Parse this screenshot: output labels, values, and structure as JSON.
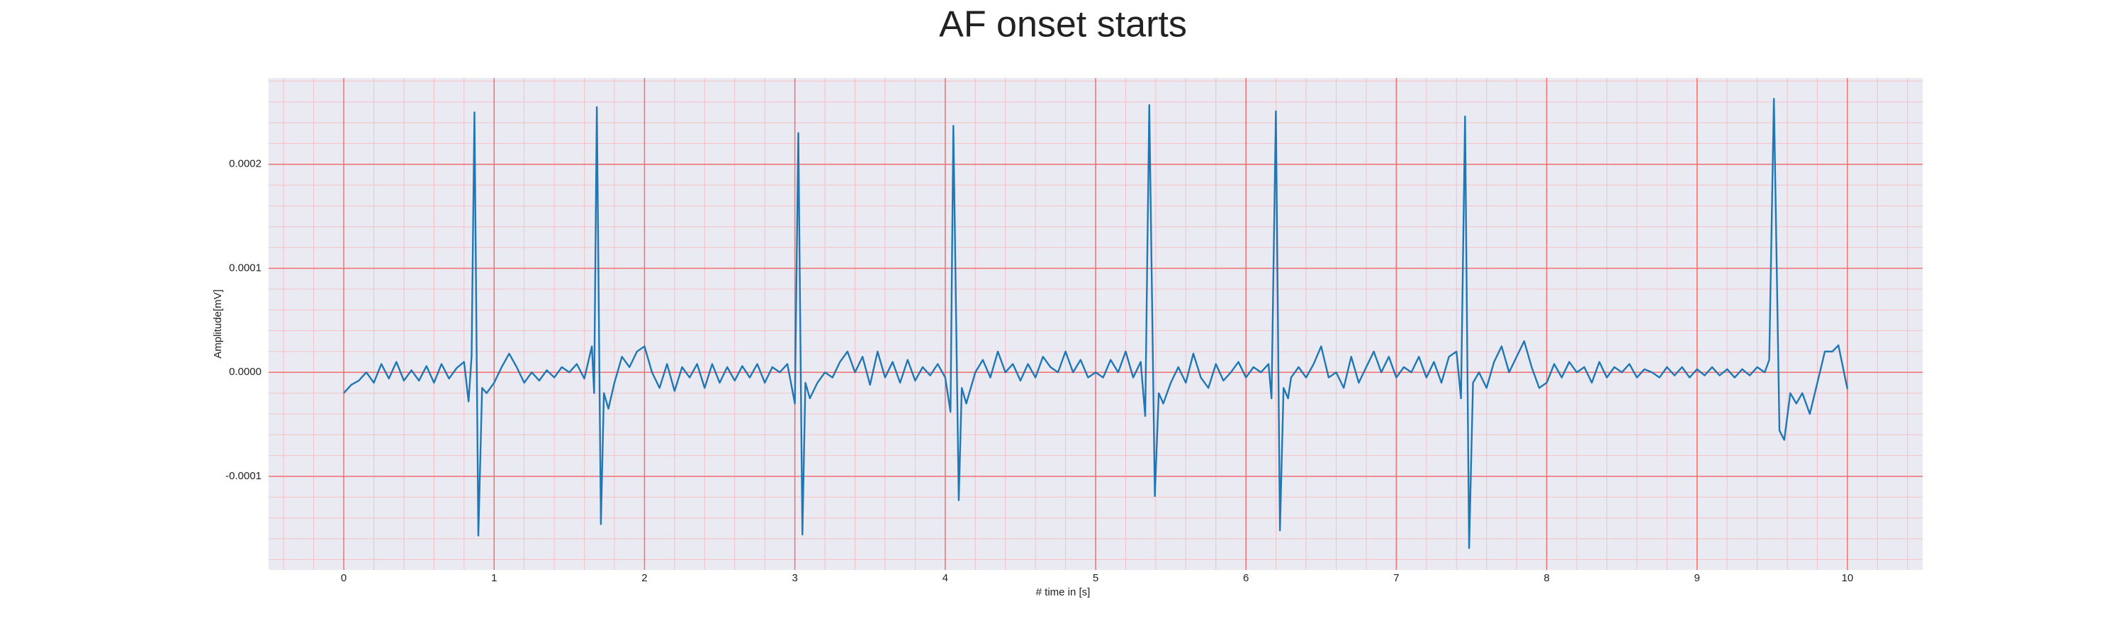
{
  "chart_data": {
    "type": "line",
    "title": "AF onset starts",
    "xlabel": "# time in [s]",
    "ylabel": "Amplitude[mV]",
    "color": "#1f77b4",
    "grid": true,
    "grid_color": "#f07070",
    "minor_grid": true,
    "minor_grid_color": "#f5c0c8",
    "background": "#eaeaf2",
    "xlim": [
      -0.5,
      10.5
    ],
    "ylim": [
      -0.00019,
      0.000283
    ],
    "xticks": [
      0,
      1,
      2,
      3,
      4,
      5,
      6,
      7,
      8,
      9,
      10
    ],
    "yticks": [
      -0.0001,
      {
        "value": 0,
        "label": "0.0000"
      },
      0.0001,
      0.0002
    ],
    "xminorticks": [
      -0.4,
      -0.2,
      0.2,
      0.4,
      0.6,
      0.8,
      1.2,
      1.4,
      1.6,
      1.8,
      2.2,
      2.4,
      2.6,
      2.8,
      3.2,
      3.4,
      3.6,
      3.8,
      4.2,
      4.4,
      4.6,
      4.8,
      5.2,
      5.4,
      5.6,
      5.8,
      6.2,
      6.4,
      6.6,
      6.8,
      7.2,
      7.4,
      7.6,
      7.8,
      8.2,
      8.4,
      8.6,
      8.8,
      9.2,
      9.4,
      9.6,
      9.8,
      10.2,
      10.4
    ],
    "yminorticks": [
      -0.00018,
      -0.00016,
      -0.00014,
      -0.00012,
      -8e-05,
      -6e-05,
      -4e-05,
      -2e-05,
      2e-05,
      4e-05,
      6e-05,
      8e-05,
      0.00012,
      0.00014,
      0.00016,
      0.00018,
      0.00022,
      0.00024,
      0.00026,
      0.00028
    ],
    "x": [
      0,
      0.05,
      0.1,
      0.15,
      0.2,
      0.25,
      0.3,
      0.35,
      0.4,
      0.45,
      0.5,
      0.55,
      0.6,
      0.65,
      0.7,
      0.75,
      0.8,
      0.83,
      0.85,
      0.869,
      0.895,
      0.92,
      0.95,
      1.0,
      1.05,
      1.1,
      1.15,
      1.2,
      1.25,
      1.3,
      1.35,
      1.4,
      1.45,
      1.5,
      1.55,
      1.6,
      1.65,
      1.665,
      1.683,
      1.71,
      1.73,
      1.76,
      1.8,
      1.85,
      1.9,
      1.95,
      2.0,
      2.05,
      2.1,
      2.15,
      2.2,
      2.25,
      2.3,
      2.35,
      2.4,
      2.45,
      2.5,
      2.55,
      2.6,
      2.65,
      2.7,
      2.75,
      2.8,
      2.85,
      2.9,
      2.95,
      3.0,
      3.023,
      3.05,
      3.07,
      3.1,
      3.15,
      3.2,
      3.25,
      3.3,
      3.35,
      3.4,
      3.45,
      3.5,
      3.55,
      3.6,
      3.65,
      3.7,
      3.75,
      3.8,
      3.85,
      3.9,
      3.95,
      4.0,
      4.035,
      4.054,
      4.09,
      4.11,
      4.14,
      4.2,
      4.25,
      4.3,
      4.35,
      4.4,
      4.45,
      4.5,
      4.55,
      4.6,
      4.65,
      4.7,
      4.75,
      4.8,
      4.85,
      4.9,
      4.95,
      5.0,
      5.05,
      5.1,
      5.15,
      5.2,
      5.25,
      5.3,
      5.33,
      5.357,
      5.394,
      5.42,
      5.45,
      5.5,
      5.55,
      5.6,
      5.65,
      5.7,
      5.75,
      5.8,
      5.85,
      5.9,
      5.95,
      6.0,
      6.05,
      6.1,
      6.15,
      6.17,
      6.199,
      6.226,
      6.25,
      6.28,
      6.3,
      6.35,
      6.4,
      6.45,
      6.5,
      6.55,
      6.6,
      6.65,
      6.7,
      6.75,
      6.8,
      6.85,
      6.9,
      6.95,
      7.0,
      7.05,
      7.1,
      7.15,
      7.2,
      7.25,
      7.3,
      7.35,
      7.4,
      7.43,
      7.457,
      7.484,
      7.51,
      7.55,
      7.6,
      7.65,
      7.7,
      7.75,
      7.8,
      7.85,
      7.9,
      7.95,
      8.0,
      8.05,
      8.1,
      8.15,
      8.2,
      8.25,
      8.3,
      8.35,
      8.4,
      8.45,
      8.5,
      8.55,
      8.6,
      8.65,
      8.7,
      8.75,
      8.8,
      8.85,
      8.9,
      8.95,
      9.0,
      9.05,
      9.1,
      9.15,
      9.2,
      9.25,
      9.3,
      9.35,
      9.4,
      9.45,
      9.48,
      9.511,
      9.548,
      9.58,
      9.62,
      9.66,
      9.7,
      9.75,
      9.8,
      9.85,
      9.9,
      9.94,
      10.0
    ],
    "values": [
      -2e-05,
      -1.2e-05,
      -8e-06,
      0,
      -1e-05,
      8e-06,
      -6e-06,
      1e-05,
      -8e-06,
      2e-06,
      -8e-06,
      6e-06,
      -1e-05,
      8e-06,
      -6e-06,
      4e-06,
      1e-05,
      -2.8e-05,
      1.5e-05,
      0.00025,
      -0.000157,
      -1.5e-05,
      -2e-05,
      -1e-05,
      5e-06,
      1.8e-05,
      5e-06,
      -1e-05,
      0,
      -8e-06,
      2e-06,
      -5e-06,
      5e-06,
      0,
      8e-06,
      -6e-06,
      2.5e-05,
      -2e-05,
      0.000255,
      -0.000146,
      -2e-05,
      -3.5e-05,
      -1e-05,
      1.5e-05,
      5e-06,
      2e-05,
      2.5e-05,
      0,
      -1.5e-05,
      8e-06,
      -1.8e-05,
      5e-06,
      -5e-06,
      8e-06,
      -1.5e-05,
      8e-06,
      -1e-05,
      5e-06,
      -8e-06,
      6e-06,
      -5e-06,
      8e-06,
      -1e-05,
      5e-06,
      0,
      8e-06,
      -3e-05,
      0.00023,
      -0.000156,
      -1e-05,
      -2.5e-05,
      -1e-05,
      0,
      -5e-06,
      1e-05,
      2e-05,
      0,
      1.5e-05,
      -1.2e-05,
      2e-05,
      -5e-06,
      1e-05,
      -1e-05,
      1.2e-05,
      -8e-06,
      5e-06,
      -3e-06,
      8e-06,
      -5e-06,
      -3.8e-05,
      0.000237,
      -0.000123,
      -1.5e-05,
      -3e-05,
      0,
      1.2e-05,
      -5e-06,
      2e-05,
      0,
      8e-06,
      -8e-06,
      8e-06,
      -5e-06,
      1.5e-05,
      5e-06,
      0,
      2e-05,
      0,
      1.2e-05,
      -5e-06,
      0,
      -5e-06,
      1.2e-05,
      0,
      2e-05,
      -5e-06,
      1e-05,
      -4.2e-05,
      0.000257,
      -0.000119,
      -2e-05,
      -3e-05,
      -1e-05,
      5e-06,
      -1e-05,
      1.8e-05,
      -5e-06,
      -1.5e-05,
      8e-06,
      -8e-06,
      0,
      1e-05,
      -5e-06,
      5e-06,
      0,
      8e-06,
      -2.5e-05,
      0.000251,
      -0.000152,
      -1.5e-05,
      -2.5e-05,
      -5e-06,
      5e-06,
      -5e-06,
      8e-06,
      2.5e-05,
      -5e-06,
      0,
      -1.5e-05,
      1.5e-05,
      -1e-05,
      5e-06,
      2e-05,
      0,
      1.5e-05,
      -5e-06,
      5e-06,
      0,
      1.5e-05,
      -5e-06,
      1e-05,
      -1e-05,
      1.5e-05,
      2e-05,
      -2.5e-05,
      0.000246,
      -0.000169,
      -1e-05,
      0,
      -1.5e-05,
      1e-05,
      2.5e-05,
      0,
      1.5e-05,
      3e-05,
      5e-06,
      -1.5e-05,
      -1e-05,
      8e-06,
      -5e-06,
      1e-05,
      0,
      5e-06,
      -1e-05,
      1e-05,
      -5e-06,
      5e-06,
      0,
      8e-06,
      -5e-06,
      3e-06,
      0,
      -5e-06,
      5e-06,
      -3e-06,
      5e-06,
      -5e-06,
      3e-06,
      -3e-06,
      5e-06,
      -3e-06,
      3e-06,
      -5e-06,
      3e-06,
      -3e-06,
      5e-06,
      0,
      1.2e-05,
      0.000263,
      -5.6e-05,
      -6.5e-05,
      -2e-05,
      -3e-05,
      -2e-05,
      -4e-05,
      -1e-05,
      2e-05,
      2e-05,
      2.6e-05,
      -1.6e-05
    ]
  }
}
